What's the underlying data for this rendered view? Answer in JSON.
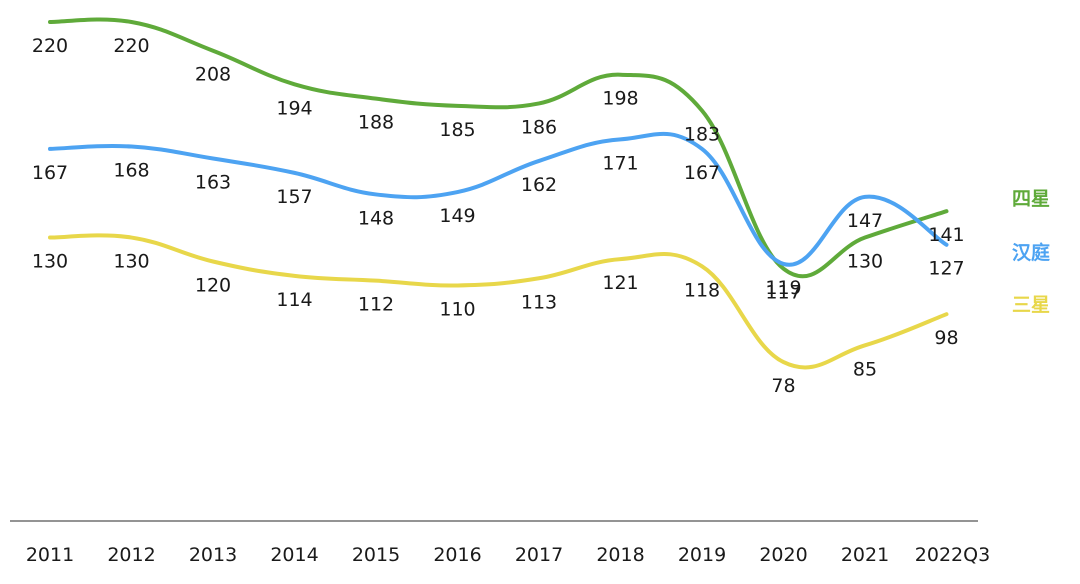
{
  "chart_data": {
    "type": "line",
    "title": "",
    "xlabel": "",
    "ylabel": "",
    "ylim": [
      0,
      230
    ],
    "grid": false,
    "legend_position": "right",
    "categories": [
      "2011",
      "2012",
      "2013",
      "2014",
      "2015",
      "2016",
      "2017",
      "2018",
      "2019",
      "2020",
      "2021",
      "2022Q3"
    ],
    "series": [
      {
        "name": "四星",
        "color": "#5faa3a",
        "values": [
          220,
          220,
          208,
          194,
          188,
          185,
          186,
          198,
          183,
          117,
          130,
          141
        ]
      },
      {
        "name": "汉庭",
        "color": "#4da3f2",
        "values": [
          167,
          168,
          163,
          157,
          148,
          149,
          162,
          171,
          167,
          119,
          147,
          127
        ]
      },
      {
        "name": "三星",
        "color": "#e8d74a",
        "values": [
          130,
          130,
          120,
          114,
          112,
          110,
          113,
          121,
          118,
          78,
          85,
          98
        ]
      }
    ]
  }
}
